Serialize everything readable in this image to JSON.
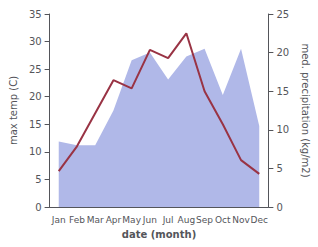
{
  "chart_data": {
    "type": "line",
    "xlabel": "date (month)",
    "ylabel": "max temp (C)",
    "y2label": "med. precipitation (kg/m2)",
    "categories": [
      "Jan",
      "Feb",
      "Mar",
      "Apr",
      "May",
      "Jun",
      "Jul",
      "Aug",
      "Sep",
      "Oct",
      "Nov",
      "Dec"
    ],
    "series": [
      {
        "type": "area",
        "axis": "y2",
        "color": "#b0b8e8",
        "values": [
          8.5,
          8.0,
          8.0,
          12.5,
          19.0,
          20.0,
          16.5,
          19.5,
          20.5,
          14.5,
          20.5,
          10.5
        ]
      },
      {
        "type": "line",
        "color": "#993344",
        "values": [
          6.5,
          11.0,
          17.0,
          23.0,
          21.5,
          28.5,
          27.0,
          31.5,
          21.0,
          15.0,
          8.5,
          6.0
        ]
      }
    ],
    "ylim": [
      0,
      35
    ],
    "yticks": [
      0,
      5,
      10,
      15,
      20,
      25,
      30,
      35
    ],
    "y2lim": [
      0,
      25
    ],
    "y2ticks": [
      0,
      5,
      10,
      15,
      20,
      25
    ],
    "grid": false
  }
}
